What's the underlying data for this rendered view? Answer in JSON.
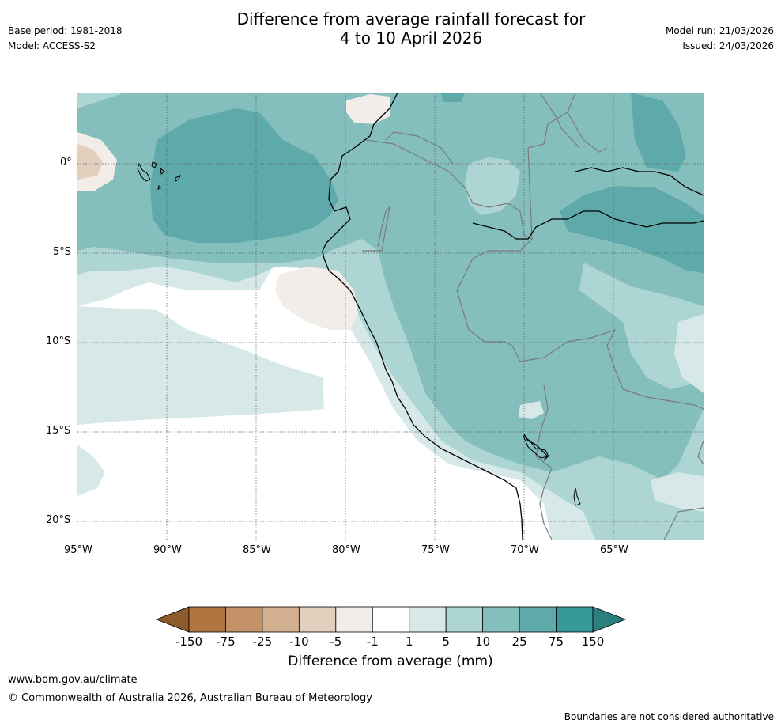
{
  "header": {
    "title_line1": "Difference from average rainfall forecast for",
    "title_line2": "4 to 10 April 2026",
    "base_period": "Base period: 1981-2018",
    "model": "Model: ACCESS-S2",
    "model_run": "Model run: 21/03/2026",
    "issued": "Issued: 24/03/2026"
  },
  "map": {
    "lon_labels": [
      "95°W",
      "90°W",
      "85°W",
      "80°W",
      "75°W",
      "70°W",
      "65°W"
    ],
    "lat_labels": [
      "0°",
      "5°S",
      "10°S",
      "15°S",
      "20°S"
    ]
  },
  "colorbar": {
    "ticks": [
      "-150",
      "-75",
      "-25",
      "-10",
      "-5",
      "-1",
      "1",
      "5",
      "10",
      "25",
      "75",
      "150"
    ],
    "colors": [
      "#8c5a2b",
      "#b07540",
      "#c29169",
      "#d2b08f",
      "#e3cfbd",
      "#f2ede8",
      "#ffffff",
      "#d6e9e8",
      "#acd5d3",
      "#84bfbd",
      "#5eaaaa",
      "#359a98",
      "#2b7f7c"
    ],
    "label": "Difference from average (mm)"
  },
  "footer": {
    "website": "www.bom.gov.au/climate",
    "copyright": "© Commonwealth of Australia 2026, Australian Bureau of Meteorology",
    "disclaimer": "Boundaries are not considered authoritative"
  }
}
